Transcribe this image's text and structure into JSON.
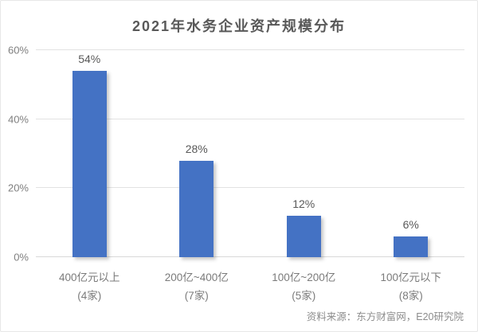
{
  "chart_data": {
    "type": "bar",
    "title": "2021年水务企业资产规模分布",
    "categories": [
      "400亿元以上",
      "200亿~400亿",
      "100亿~200亿",
      "100亿元以下"
    ],
    "category_counts": [
      "(4家)",
      "(7家)",
      "(5家)",
      "(8家)"
    ],
    "values": [
      54,
      28,
      12,
      6
    ],
    "value_labels": [
      "54%",
      "28%",
      "12%",
      "6%"
    ],
    "xlabel": "",
    "ylabel": "",
    "ylim": [
      0,
      60
    ],
    "yticks": [
      0,
      20,
      40,
      60
    ],
    "ytick_labels": [
      "0%",
      "20%",
      "40%",
      "60%"
    ],
    "grid": true,
    "legend": false,
    "bar_color": "#4472C4"
  },
  "source_note": "资料来源：东方财富网，E20研究院",
  "colors": {
    "bar": "#4472C4",
    "title_text": "#595959",
    "value_label_text": "#595959",
    "axis_text": "#7f7f7f",
    "gridline": "#e2e2e2",
    "card_border": "#e7e7e7",
    "background": "#ffffff"
  }
}
